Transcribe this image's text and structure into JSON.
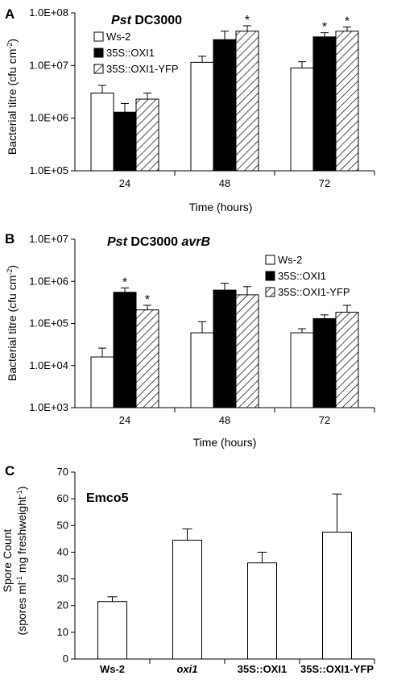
{
  "chart_data": [
    {
      "type": "bar",
      "panel": "A",
      "title_prefix": "Pst",
      "title_rest": " DC3000",
      "title_suffix": "",
      "xlabel": "Time (hours)",
      "ylabel_main": "Bacterial titre (cfu cm",
      "ylabel_sup": "-2",
      "ylabel_end": ")",
      "yscale": "log",
      "ylim": [
        100000,
        100000000
      ],
      "yticks": [
        {
          "value": 100000,
          "label": "1.0E+05"
        },
        {
          "value": 1000000,
          "label": "1.0E+06"
        },
        {
          "value": 10000000,
          "label": "1.0E+07"
        },
        {
          "value": 100000000,
          "label": "1.0E+08"
        }
      ],
      "categories": [
        "24",
        "48",
        "72"
      ],
      "series": [
        {
          "name": "Ws-2",
          "fill": "white",
          "values": [
            3000000,
            11500000,
            9000000
          ],
          "errors": [
            4200000,
            15000000,
            11800000
          ]
        },
        {
          "name": "35S::OXI1",
          "fill": "black",
          "values": [
            1300000,
            31000000,
            35000000
          ],
          "errors": [
            1900000,
            45000000,
            42000000
          ]
        },
        {
          "name": "35S::OXI1-YFP",
          "fill": "hatch",
          "values": [
            2300000,
            45000000,
            45000000
          ],
          "errors": [
            3000000,
            57000000,
            54000000
          ]
        }
      ],
      "stars": [
        [
          false,
          false,
          false
        ],
        [
          false,
          false,
          true
        ],
        [
          false,
          true,
          true
        ]
      ],
      "legend": "top-left"
    },
    {
      "type": "bar",
      "panel": "B",
      "title_prefix": "Pst",
      "title_rest": " DC3000 ",
      "title_suffix": "avrB",
      "xlabel": "Time (hours)",
      "ylabel_main": "Bacterial titre (cfu cm",
      "ylabel_sup": "-2",
      "ylabel_end": ")",
      "yscale": "log",
      "ylim": [
        1000,
        10000000
      ],
      "yticks": [
        {
          "value": 1000,
          "label": "1.0E+03"
        },
        {
          "value": 10000,
          "label": "1.0E+04"
        },
        {
          "value": 100000,
          "label": "1.0E+05"
        },
        {
          "value": 1000000,
          "label": "1.0E+06"
        },
        {
          "value": 10000000,
          "label": "1.0E+07"
        }
      ],
      "categories": [
        "24",
        "48",
        "72"
      ],
      "series": [
        {
          "name": "Ws-2",
          "fill": "white",
          "values": [
            16000,
            60000,
            60000
          ],
          "errors": [
            26000,
            110000,
            75000
          ]
        },
        {
          "name": "35S::OXI1",
          "fill": "black",
          "values": [
            550000,
            620000,
            130000
          ],
          "errors": [
            700000,
            900000,
            160000
          ]
        },
        {
          "name": "35S::OXI1-YFP",
          "fill": "hatch",
          "values": [
            210000,
            480000,
            185000
          ],
          "errors": [
            270000,
            750000,
            270000
          ]
        }
      ],
      "stars": [
        [
          false,
          true,
          true
        ],
        [
          false,
          false,
          false
        ],
        [
          false,
          false,
          false
        ]
      ],
      "legend": "top-right"
    },
    {
      "type": "bar",
      "panel": "C",
      "title_prefix": "",
      "title_rest": "Emco5",
      "title_suffix": "",
      "xlabel": "",
      "ylabel_line1": "Spore Count",
      "ylabel_line2_main": "(spores ml",
      "ylabel_line2_sup1": "-1",
      "ylabel_line2_mid": " mg freshweight",
      "ylabel_line2_sup2": "-1",
      "ylabel_line2_end": ")",
      "yscale": "linear",
      "ylim": [
        0,
        70
      ],
      "yticks": [
        {
          "value": 0,
          "label": "0"
        },
        {
          "value": 10,
          "label": "10"
        },
        {
          "value": 20,
          "label": "20"
        },
        {
          "value": 30,
          "label": "30"
        },
        {
          "value": 40,
          "label": "40"
        },
        {
          "value": 50,
          "label": "50"
        },
        {
          "value": 60,
          "label": "60"
        },
        {
          "value": 70,
          "label": "70"
        }
      ],
      "categories": [
        "Ws-2",
        "oxi1",
        "35S::OXI1",
        "35S::OXI1-YFP"
      ],
      "italic_categories": [
        "oxi1"
      ],
      "values": [
        21.5,
        44.5,
        36,
        47.5
      ],
      "errors": [
        23.3,
        48.7,
        40,
        61.8
      ]
    }
  ]
}
